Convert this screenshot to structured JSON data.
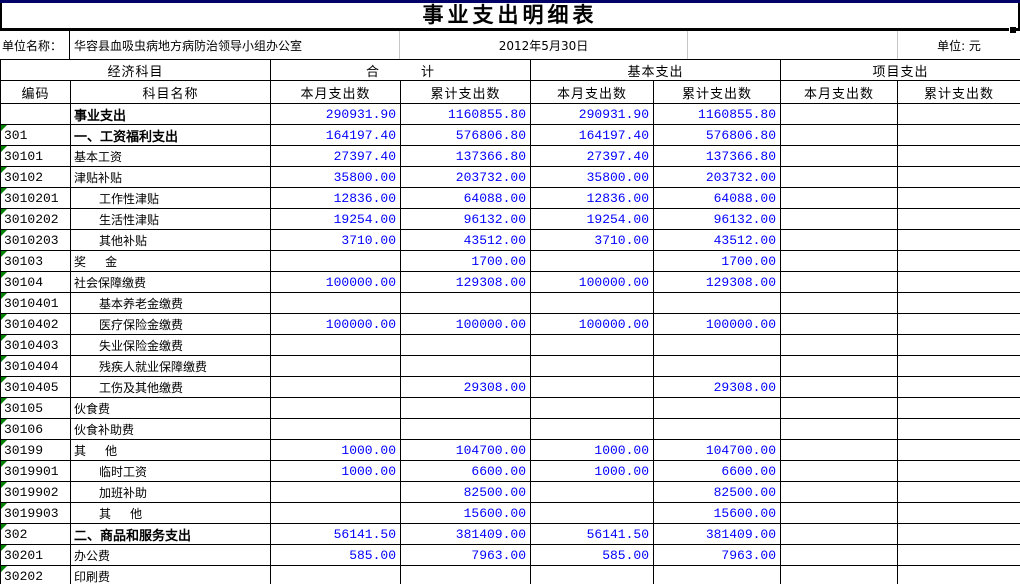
{
  "title": "事业支出明细表",
  "info": {
    "unit_label": "单位名称：",
    "unit_name": "华容县血吸虫病地方病防治领导小组办公室",
    "date": "2012年5月30日",
    "currency_label": "单位: 元"
  },
  "colors": {
    "value_text": "#0000ff",
    "grid_line": "#000000",
    "light_grid_line": "#c6c6c6",
    "error_triangle": "#008000",
    "top_strip": "#000066"
  },
  "table": {
    "group_headers": [
      "经济科目",
      "合        计",
      "基本支出",
      "项目支出"
    ],
    "sub_headers": [
      "编码",
      "科目名称",
      "本月支出数",
      "累计支出数",
      "本月支出数",
      "累计支出数",
      "本月支出数",
      "累计支出数"
    ],
    "rows": [
      {
        "code": "",
        "name": "事业支出",
        "bold": true,
        "indent": false,
        "error_marker": false,
        "values": [
          "290931.90",
          "1160855.80",
          "290931.90",
          "1160855.80",
          "",
          ""
        ]
      },
      {
        "code": "301",
        "name": "一、工资福利支出",
        "bold": true,
        "indent": false,
        "error_marker": true,
        "values": [
          "164197.40",
          "576806.80",
          "164197.40",
          "576806.80",
          "",
          ""
        ]
      },
      {
        "code": "30101",
        "name": "基本工资",
        "bold": false,
        "indent": false,
        "error_marker": true,
        "values": [
          "27397.40",
          "137366.80",
          "27397.40",
          "137366.80",
          "",
          ""
        ]
      },
      {
        "code": "30102",
        "name": "津贴补贴",
        "bold": false,
        "indent": false,
        "error_marker": true,
        "values": [
          "35800.00",
          "203732.00",
          "35800.00",
          "203732.00",
          "",
          ""
        ]
      },
      {
        "code": "3010201",
        "name": "工作性津贴",
        "bold": false,
        "indent": true,
        "error_marker": true,
        "values": [
          "12836.00",
          "64088.00",
          "12836.00",
          "64088.00",
          "",
          ""
        ]
      },
      {
        "code": "3010202",
        "name": "生活性津贴",
        "bold": false,
        "indent": true,
        "error_marker": true,
        "values": [
          "19254.00",
          "96132.00",
          "19254.00",
          "96132.00",
          "",
          ""
        ]
      },
      {
        "code": "3010203",
        "name": "其他补贴",
        "bold": false,
        "indent": true,
        "error_marker": true,
        "values": [
          "3710.00",
          "43512.00",
          "3710.00",
          "43512.00",
          "",
          ""
        ]
      },
      {
        "code": "30103",
        "name": "奖     金",
        "bold": false,
        "indent": false,
        "error_marker": true,
        "values": [
          "",
          "1700.00",
          "",
          "1700.00",
          "",
          ""
        ]
      },
      {
        "code": "30104",
        "name": "社会保障缴费",
        "bold": false,
        "indent": false,
        "error_marker": true,
        "values": [
          "100000.00",
          "129308.00",
          "100000.00",
          "129308.00",
          "",
          ""
        ]
      },
      {
        "code": "3010401",
        "name": "基本养老金缴费",
        "bold": false,
        "indent": true,
        "error_marker": true,
        "values": [
          "",
          "",
          "",
          "",
          "",
          ""
        ]
      },
      {
        "code": "3010402",
        "name": "医疗保险金缴费",
        "bold": false,
        "indent": true,
        "error_marker": true,
        "values": [
          "100000.00",
          "100000.00",
          "100000.00",
          "100000.00",
          "",
          ""
        ]
      },
      {
        "code": "3010403",
        "name": "失业保险金缴费",
        "bold": false,
        "indent": true,
        "error_marker": true,
        "values": [
          "",
          "",
          "",
          "",
          "",
          ""
        ]
      },
      {
        "code": "3010404",
        "name": "残疾人就业保障缴费",
        "bold": false,
        "indent": true,
        "error_marker": true,
        "values": [
          "",
          "",
          "",
          "",
          "",
          ""
        ]
      },
      {
        "code": "3010405",
        "name": "工伤及其他缴费",
        "bold": false,
        "indent": true,
        "error_marker": true,
        "values": [
          "",
          "29308.00",
          "",
          "29308.00",
          "",
          ""
        ]
      },
      {
        "code": "30105",
        "name": "伙食费",
        "bold": false,
        "indent": false,
        "error_marker": true,
        "values": [
          "",
          "",
          "",
          "",
          "",
          ""
        ]
      },
      {
        "code": "30106",
        "name": "伙食补助费",
        "bold": false,
        "indent": false,
        "error_marker": true,
        "values": [
          "",
          "",
          "",
          "",
          "",
          ""
        ]
      },
      {
        "code": "30199",
        "name": "其     他",
        "bold": false,
        "indent": false,
        "error_marker": true,
        "values": [
          "1000.00",
          "104700.00",
          "1000.00",
          "104700.00",
          "",
          ""
        ]
      },
      {
        "code": "3019901",
        "name": "临时工资",
        "bold": false,
        "indent": true,
        "error_marker": true,
        "values": [
          "1000.00",
          "6600.00",
          "1000.00",
          "6600.00",
          "",
          ""
        ]
      },
      {
        "code": "3019902",
        "name": "加班补助",
        "bold": false,
        "indent": true,
        "error_marker": true,
        "values": [
          "",
          "82500.00",
          "",
          "82500.00",
          "",
          ""
        ]
      },
      {
        "code": "3019903",
        "name": "其     他",
        "bold": false,
        "indent": true,
        "error_marker": true,
        "values": [
          "",
          "15600.00",
          "",
          "15600.00",
          "",
          ""
        ]
      },
      {
        "code": "302",
        "name": "二、商品和服务支出",
        "bold": true,
        "indent": false,
        "error_marker": true,
        "values": [
          "56141.50",
          "381409.00",
          "56141.50",
          "381409.00",
          "",
          ""
        ]
      },
      {
        "code": "30201",
        "name": "办公费",
        "bold": false,
        "indent": false,
        "error_marker": true,
        "values": [
          "585.00",
          "7963.00",
          "585.00",
          "7963.00",
          "",
          ""
        ]
      },
      {
        "code": "30202",
        "name": "印刷费",
        "bold": false,
        "indent": false,
        "error_marker": true,
        "values": [
          "",
          "",
          "",
          "",
          "",
          ""
        ]
      }
    ]
  }
}
